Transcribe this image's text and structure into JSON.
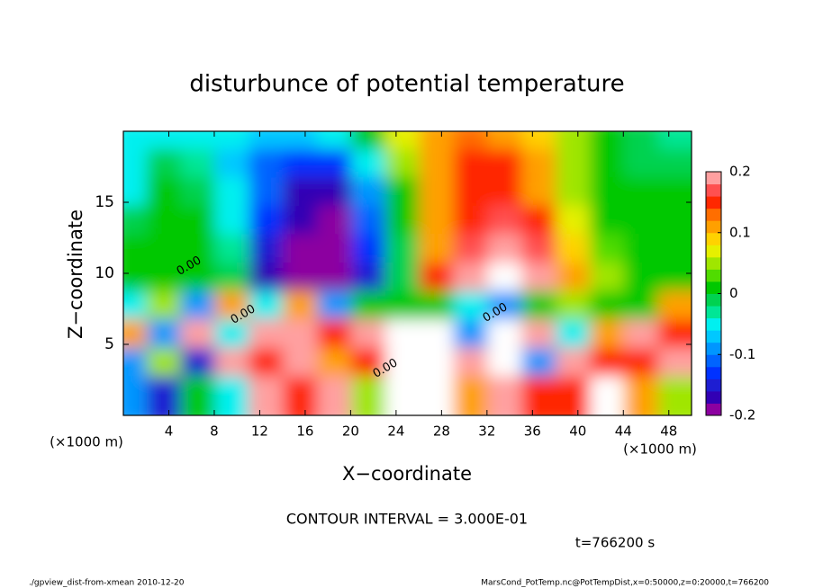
{
  "chart_data": {
    "type": "contour",
    "title": "disturbunce of potential temperature",
    "xlabel": "X−coordinate",
    "ylabel": "Z−coordinate",
    "x_unit": "(×1000 m)",
    "y_unit": "(×1000 m)",
    "contour_label": "0.00",
    "contour_interval": "CONTOUR INTERVAL = 3.000E-01",
    "time_label": "t=766200 s",
    "footer_left": "./gpview_dist-from-xmean  2010-12-20",
    "footer_right": "MarsCond_PotTemp.nc@PotTempDist,x=0:50000,z=0:20000,t=766200",
    "xlim": [
      0,
      50
    ],
    "xticks": [
      4,
      8,
      12,
      16,
      20,
      24,
      28,
      32,
      36,
      40,
      44,
      48
    ],
    "ylim": [
      0,
      20
    ],
    "yticks": [
      5,
      10,
      15
    ],
    "x": [
      1.5,
      4.5,
      7.5,
      10.5,
      13.5,
      16.5,
      19.5,
      22.5,
      25.5,
      28.5,
      31.5,
      34.5,
      37.5,
      40.5,
      43.5,
      46.5,
      49.5
    ],
    "z": [
      19,
      17,
      15,
      13,
      11,
      9,
      7,
      5,
      3,
      1
    ],
    "values": [
      [
        -0.06,
        -0.05,
        -0.04,
        -0.05,
        -0.08,
        -0.07,
        -0.05,
        0,
        0.06,
        0.12,
        0.13,
        0.12,
        0.09,
        0.04,
        0,
        -0.02,
        -0.03
      ],
      [
        -0.04,
        -0.02,
        -0.03,
        -0.07,
        -0.11,
        -0.14,
        -0.13,
        -0.06,
        0.04,
        0.12,
        0.14,
        0.14,
        0.11,
        0.05,
        0.01,
        -0.01,
        -0.02
      ],
      [
        -0.05,
        0,
        -0.02,
        -0.06,
        -0.12,
        -0.17,
        -0.18,
        -0.1,
        0.02,
        0.12,
        0.14,
        0.15,
        0.12,
        0.05,
        0.02,
        0,
        0
      ],
      [
        -0.02,
        0.01,
        0,
        -0.05,
        -0.14,
        -0.18,
        -0.19,
        -0.12,
        0,
        0.12,
        0.15,
        0.17,
        0.14,
        0.06,
        0.02,
        0,
        0
      ],
      [
        0,
        0.02,
        0.02,
        -0.03,
        -0.15,
        -0.2,
        -0.2,
        -0.14,
        -0.02,
        0.12,
        0.16,
        0.2,
        0.17,
        0.08,
        0.03,
        0,
        0
      ],
      [
        0,
        0.02,
        0.02,
        -0.02,
        -0.17,
        -0.2,
        -0.22,
        -0.15,
        -0.02,
        0.14,
        0.18,
        0.22,
        0.2,
        0.1,
        0.04,
        0.01,
        0
      ],
      [
        -0.05,
        0.05,
        -0.1,
        0.1,
        -0.05,
        0.1,
        -0.1,
        0,
        0.02,
        0,
        -0.05,
        -0.1,
        0,
        0.05,
        0,
        0.02,
        0.1
      ],
      [
        0.1,
        -0.1,
        0.2,
        -0.05,
        0.2,
        0.2,
        0.15,
        0.2,
        0.25,
        0.25,
        -0.1,
        0.25,
        0.2,
        -0.05,
        0.1,
        0.2,
        0.15
      ],
      [
        -0.1,
        0.05,
        -0.15,
        0.2,
        0.15,
        0.2,
        0.1,
        0.15,
        0.25,
        0.25,
        0.2,
        0.25,
        -0.1,
        0.2,
        0.15,
        0.15,
        0.2
      ],
      [
        -0.1,
        -0.15,
        0,
        -0.05,
        0.2,
        0.15,
        0.2,
        0.05,
        0.25,
        0.25,
        0.1,
        0.2,
        0.15,
        0.15,
        0.25,
        0.1,
        0.05
      ]
    ],
    "zlim": [
      -0.2,
      0.2
    ],
    "zticks": [
      -0.2,
      -0.1,
      0,
      0.1,
      0.2
    ],
    "colormap": [
      "#8c00a0",
      "#3200b4",
      "#1e1ed2",
      "#0032ff",
      "#0064ff",
      "#0096ff",
      "#00c8ff",
      "#00f0f0",
      "#00e696",
      "#00d250",
      "#00c800",
      "#50dc00",
      "#a0e600",
      "#e6f000",
      "#ffd200",
      "#ffa000",
      "#ff6e00",
      "#ff2800",
      "#ff5050",
      "#ffa0a0"
    ],
    "over_color": "#ffffff"
  }
}
